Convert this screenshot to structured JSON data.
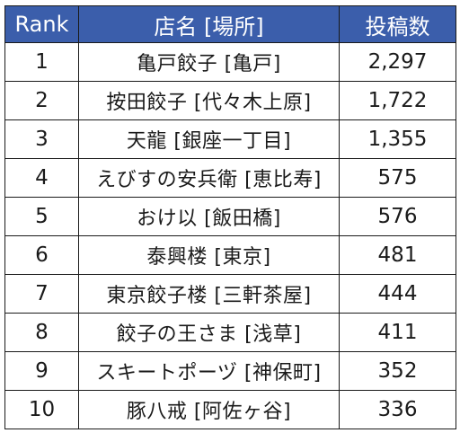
{
  "table": {
    "headers": {
      "rank": "Rank",
      "shop": "店名 [場所]",
      "count": "投稿数"
    },
    "rows": [
      {
        "rank": "1",
        "shop": "亀戸餃子 [亀戸]",
        "count": "2,297"
      },
      {
        "rank": "2",
        "shop": "按田餃子 [代々木上原]",
        "count": "1,722"
      },
      {
        "rank": "3",
        "shop": "天龍 [銀座一丁目]",
        "count": "1,355"
      },
      {
        "rank": "4",
        "shop": "えびすの安兵衛 [恵比寿]",
        "count": "575"
      },
      {
        "rank": "5",
        "shop": "おけ以 [飯田橋]",
        "count": "576"
      },
      {
        "rank": "6",
        "shop": "泰興楼 [東京]",
        "count": "481"
      },
      {
        "rank": "7",
        "shop": "東京餃子楼 [三軒茶屋]",
        "count": "444"
      },
      {
        "rank": "8",
        "shop": "餃子の王さま [浅草]",
        "count": "411"
      },
      {
        "rank": "9",
        "shop": "スキートポーヅ [神保町]",
        "count": "352"
      },
      {
        "rank": "10",
        "shop": "豚八戒 [阿佐ヶ谷]",
        "count": "336"
      }
    ]
  },
  "colors": {
    "header_background": "#3b5eab",
    "header_text": "#ffffff",
    "border": "#1a1a1a"
  }
}
